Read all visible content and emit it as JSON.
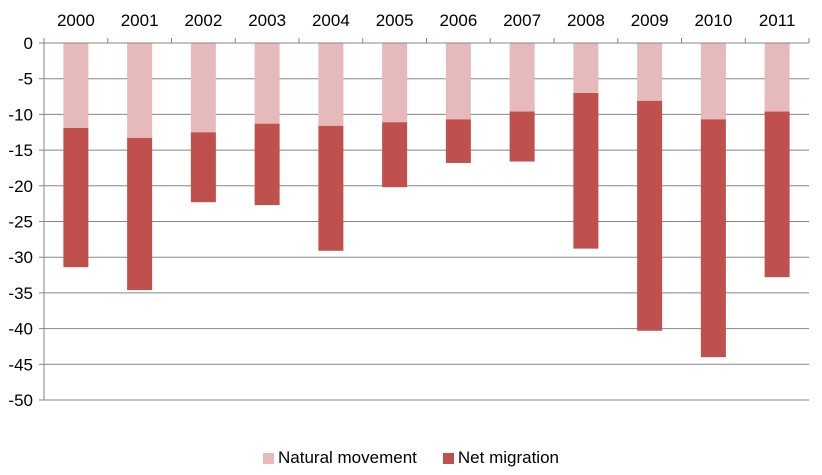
{
  "chart_data": {
    "type": "bar",
    "stacked": true,
    "categories": [
      "2000",
      "2001",
      "2002",
      "2003",
      "2004",
      "2005",
      "2006",
      "2007",
      "2008",
      "2009",
      "2010",
      "2011"
    ],
    "series": [
      {
        "name": "Natural movement",
        "color": "#E6B9BA",
        "values": [
          -11.9,
          -13.3,
          -12.5,
          -11.3,
          -11.6,
          -11.1,
          -10.7,
          -9.6,
          -7.0,
          -8.1,
          -10.7,
          -9.6
        ]
      },
      {
        "name": "Net migration",
        "color": "#C0504D",
        "values": [
          -19.5,
          -21.3,
          -9.8,
          -11.4,
          -17.5,
          -9.1,
          -6.1,
          -7.0,
          -21.8,
          -32.2,
          -33.3,
          -23.2
        ]
      }
    ],
    "yticks": [
      "0",
      "-5",
      "-10",
      "-15",
      "-20",
      "-25",
      "-30",
      "-35",
      "-40",
      "-45",
      "-50"
    ],
    "ylim": [
      -50,
      0
    ],
    "xaxis_position": "top",
    "grid": true,
    "legend_position": "bottom"
  }
}
